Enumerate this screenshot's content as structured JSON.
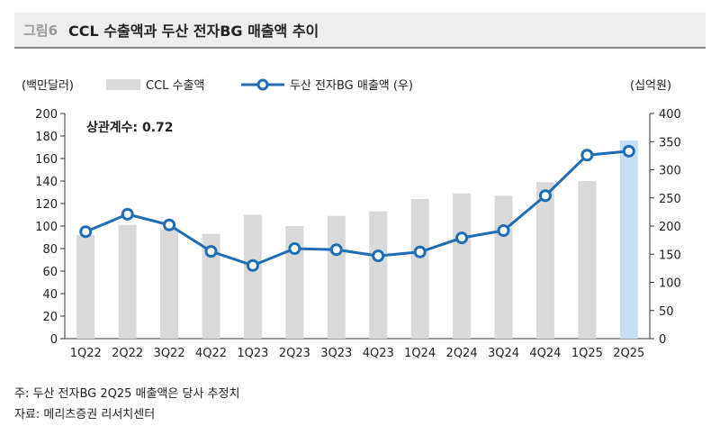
{
  "header": {
    "figure_label": "그림6",
    "title": "CCL 수출액과 두산 전자BG 매출액 추이"
  },
  "chart_data": {
    "type": "bar+line",
    "categories": [
      "1Q22",
      "2Q22",
      "3Q22",
      "4Q22",
      "1Q23",
      "2Q23",
      "3Q23",
      "4Q23",
      "1Q24",
      "2Q24",
      "3Q24",
      "4Q24",
      "1Q25",
      "2Q25"
    ],
    "series": [
      {
        "name": "CCL 수출액",
        "kind": "bar",
        "axis": "left",
        "values": [
          92,
          101,
          98,
          93,
          110,
          100,
          109,
          113,
          124,
          129,
          127,
          139,
          140,
          176
        ],
        "color": "#d9d9d9",
        "highlight_last_color": "#c5dff5"
      },
      {
        "name": "두산 전자BG 매출액 (우)",
        "kind": "line",
        "axis": "right",
        "values": [
          190,
          221,
          202,
          155,
          130,
          160,
          158,
          147,
          154,
          179,
          192,
          254,
          326,
          333
        ],
        "color": "#1f6db5"
      }
    ],
    "left_axis": {
      "unit": "(백만달러)",
      "ylim": [
        0,
        200
      ],
      "ticks": [
        0,
        20,
        40,
        60,
        80,
        100,
        120,
        140,
        160,
        180,
        200
      ]
    },
    "right_axis": {
      "unit": "(십억원)",
      "ylim": [
        0,
        400
      ],
      "ticks": [
        0,
        50,
        100,
        150,
        200,
        250,
        300,
        350,
        400
      ]
    },
    "annotation": "상관계수: 0.72",
    "grid": false,
    "legend_placement": "top-left"
  },
  "footer": {
    "note": "주: 두산 전자BG 2Q25 매출액은 당사 추정치",
    "source": "자료: 메리츠증권 리서치센터"
  }
}
